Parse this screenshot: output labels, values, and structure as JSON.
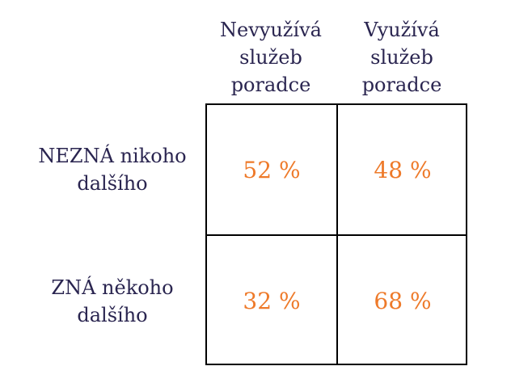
{
  "columns": [
    {
      "line1": "Nevyužívá",
      "line2": "služeb",
      "line3": "poradce"
    },
    {
      "line1": "Využívá",
      "line2": "služeb",
      "line3": "poradce"
    }
  ],
  "rows": [
    {
      "line1": "NEZNÁ nikoho",
      "line2": "dalšího"
    },
    {
      "line1": "ZNÁ někoho",
      "line2": "dalšího"
    }
  ],
  "cells": [
    [
      "52 %",
      "48 %"
    ],
    [
      "32 %",
      "68 %"
    ]
  ],
  "colors": {
    "label": "#2a2550",
    "value": "#ee7a2a",
    "border": "#000000"
  }
}
